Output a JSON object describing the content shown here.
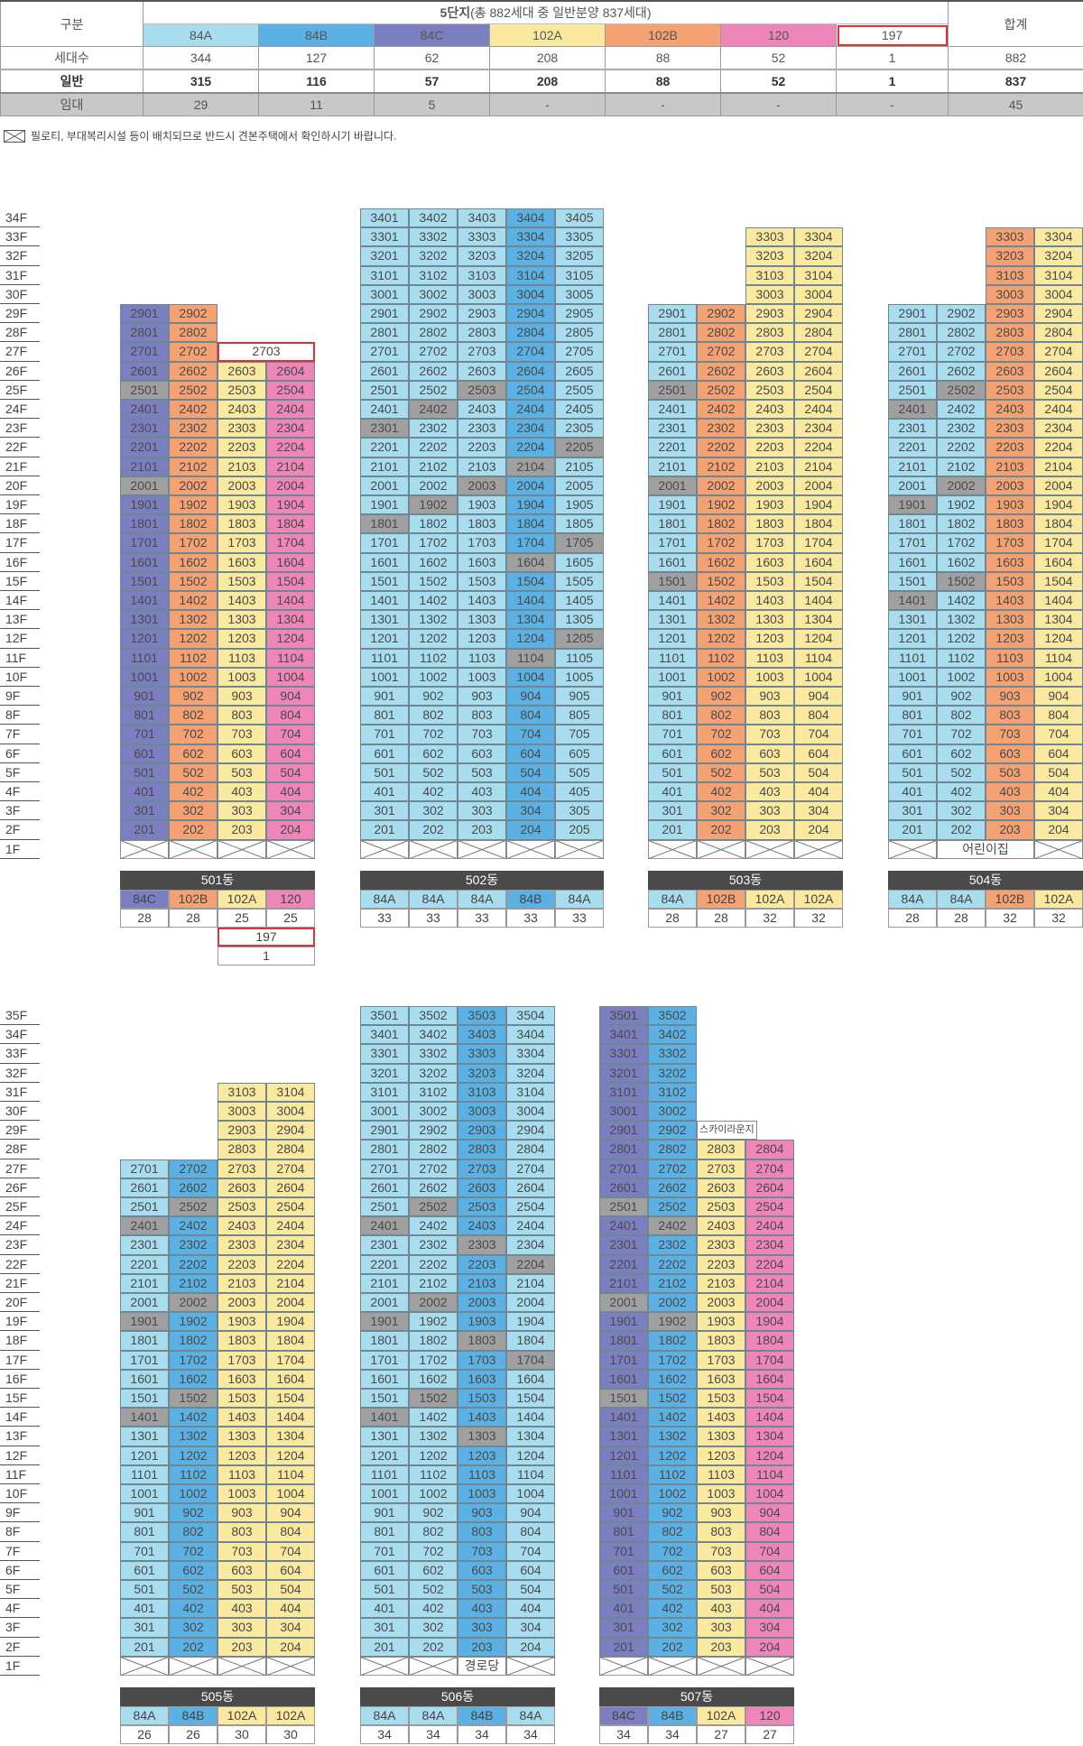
{
  "summary": {
    "header_label": "구분",
    "complex_title": "5단지",
    "complex_subtitle": "(총 882세대 중 일반분양 837세대)",
    "total_label": "합계",
    "types": [
      {
        "name": "84A",
        "color": "#a8dcef"
      },
      {
        "name": "84B",
        "color": "#5bb1e3"
      },
      {
        "name": "84C",
        "color": "#7b7fc0"
      },
      {
        "name": "102A",
        "color": "#fbe9a0"
      },
      {
        "name": "102B",
        "color": "#f4a274"
      },
      {
        "name": "120",
        "color": "#ef86b9"
      },
      {
        "name": "197",
        "color": "#ffffff"
      }
    ],
    "rows": [
      {
        "label": "세대수",
        "values": [
          "344",
          "127",
          "62",
          "208",
          "88",
          "52",
          "1"
        ],
        "total": "882"
      },
      {
        "label": "일반",
        "values": [
          "315",
          "116",
          "57",
          "208",
          "88",
          "52",
          "1"
        ],
        "total": "837"
      },
      {
        "label": "임대",
        "values": [
          "29",
          "11",
          "5",
          "-",
          "-",
          "-",
          "-"
        ],
        "total": "45"
      }
    ]
  },
  "note": {
    "icon": "pilotis-x-box-icon",
    "text": "필로티, 부대복리시설 등이 배치되므로 반드시 견본주택에서 확인하시기 바랍니다."
  },
  "colors": {
    "rental": "#a0a0a0",
    "special_border": "#d9343a",
    "label_header": "#4a4a4a"
  },
  "sections": {
    "top": {
      "floors": [
        "34F",
        "33F",
        "32F",
        "31F",
        "30F",
        "29F",
        "28F",
        "27F",
        "26F",
        "25F",
        "24F",
        "23F",
        "22F",
        "21F",
        "20F",
        "19F",
        "18F",
        "17F",
        "16F",
        "15F",
        "14F",
        "13F",
        "12F",
        "11F",
        "10F",
        "9F",
        "8F",
        "7F",
        "6F",
        "5F",
        "4F",
        "3F",
        "2F",
        "1F"
      ]
    },
    "bottom": {
      "floors": [
        "35F",
        "34F",
        "33F",
        "32F",
        "31F",
        "30F",
        "29F",
        "28F",
        "27F",
        "26F",
        "25F",
        "24F",
        "23F",
        "22F",
        "21F",
        "20F",
        "19F",
        "18F",
        "17F",
        "16F",
        "15F",
        "14F",
        "13F",
        "12F",
        "11F",
        "10F",
        "9F",
        "8F",
        "7F",
        "6F",
        "5F",
        "4F",
        "3F",
        "2F",
        "1F"
      ]
    }
  },
  "buildings": [
    {
      "id": "501",
      "label": "501동",
      "section": "top",
      "columns": [
        {
          "type": "84C",
          "count": "28",
          "top_floor": 29
        },
        {
          "type": "102B",
          "count": "28",
          "top_floor": 29
        },
        {
          "type": "102A",
          "count": "25",
          "top_floor": 26
        },
        {
          "type": "120",
          "count": "25",
          "top_floor": 26
        }
      ],
      "rental": [
        "2501",
        "2001"
      ],
      "specials": [
        {
          "kind": "special",
          "floor": 27,
          "col": 2,
          "span": 2,
          "text": "2703"
        }
      ],
      "first_floor": [
        {
          "pilotis": true
        },
        {
          "pilotis": true
        },
        {
          "pilotis": true
        },
        {
          "pilotis": true
        }
      ],
      "extra_label": {
        "type": "197",
        "count": "1",
        "col": 2,
        "span": 2
      }
    },
    {
      "id": "502",
      "label": "502동",
      "section": "top",
      "columns": [
        {
          "type": "84A",
          "count": "33",
          "top_floor": 34
        },
        {
          "type": "84A",
          "count": "33",
          "top_floor": 34
        },
        {
          "type": "84A",
          "count": "33",
          "top_floor": 34
        },
        {
          "type": "84B",
          "count": "33",
          "top_floor": 34
        },
        {
          "type": "84A",
          "count": "33",
          "top_floor": 34
        }
      ],
      "rental": [
        "2503",
        "2402",
        "2301",
        "2205",
        "2104",
        "2003",
        "1902",
        "1801",
        "1705",
        "1604",
        "1205",
        "1104"
      ],
      "specials": [],
      "first_floor": [
        {
          "pilotis": true
        },
        {
          "pilotis": true
        },
        {
          "pilotis": true
        },
        {
          "pilotis": true
        },
        {
          "pilotis": true
        }
      ]
    },
    {
      "id": "503",
      "label": "503동",
      "section": "top",
      "columns": [
        {
          "type": "84A",
          "count": "28",
          "top_floor": 29
        },
        {
          "type": "102B",
          "count": "28",
          "top_floor": 29
        },
        {
          "type": "102A",
          "count": "32",
          "top_floor": 33
        },
        {
          "type": "102A",
          "count": "32",
          "top_floor": 33
        }
      ],
      "rental": [
        "2501",
        "2001",
        "1501"
      ],
      "specials": [],
      "first_floor": [
        {
          "pilotis": true
        },
        {
          "pilotis": true
        },
        {
          "pilotis": true
        },
        {
          "pilotis": true
        }
      ]
    },
    {
      "id": "504",
      "label": "504동",
      "section": "top",
      "columns": [
        {
          "type": "84A",
          "count": "28",
          "top_floor": 29
        },
        {
          "type": "84A",
          "count": "28",
          "top_floor": 29
        },
        {
          "type": "102B",
          "count": "32",
          "top_floor": 33
        },
        {
          "type": "102A",
          "count": "32",
          "top_floor": 33
        }
      ],
      "rental": [
        "2502",
        "2401",
        "2002",
        "1901",
        "1502",
        "1401"
      ],
      "specials": [],
      "first_floor": [
        {
          "pilotis": true
        },
        {
          "text": "어린이집",
          "span": 2
        },
        {
          "pilotis": true
        }
      ]
    },
    {
      "id": "505",
      "label": "505동",
      "section": "bottom",
      "columns": [
        {
          "type": "84A",
          "count": "26",
          "top_floor": 27
        },
        {
          "type": "84B",
          "count": "26",
          "top_floor": 27
        },
        {
          "type": "102A",
          "count": "30",
          "top_floor": 31
        },
        {
          "type": "102A",
          "count": "30",
          "top_floor": 31
        }
      ],
      "rental": [
        "2502",
        "2401",
        "2002",
        "1901",
        "1502",
        "1401"
      ],
      "specials": [],
      "first_floor": [
        {
          "pilotis": true
        },
        {
          "pilotis": true
        },
        {
          "pilotis": true
        },
        {
          "pilotis": true
        }
      ]
    },
    {
      "id": "506",
      "label": "506동",
      "section": "bottom",
      "columns": [
        {
          "type": "84A",
          "count": "34",
          "top_floor": 35
        },
        {
          "type": "84A",
          "count": "34",
          "top_floor": 35
        },
        {
          "type": "84B",
          "count": "34",
          "top_floor": 35
        },
        {
          "type": "84A",
          "count": "34",
          "top_floor": 35
        }
      ],
      "rental": [
        "2502",
        "2401",
        "2303",
        "2204",
        "2002",
        "1901",
        "1803",
        "1704",
        "1502",
        "1401",
        "1303"
      ],
      "specials": [],
      "first_floor": [
        {
          "pilotis": true
        },
        {
          "pilotis": true
        },
        {
          "text": "경로당",
          "span": 1
        },
        {
          "pilotis": true
        }
      ]
    },
    {
      "id": "507",
      "label": "507동",
      "section": "bottom",
      "columns": [
        {
          "type": "84C",
          "count": "34",
          "top_floor": 35
        },
        {
          "type": "84B",
          "count": "34",
          "top_floor": 35
        },
        {
          "type": "102A",
          "count": "27",
          "top_floor": 28
        },
        {
          "type": "120",
          "count": "27",
          "top_floor": 28
        }
      ],
      "rental": [
        "2501",
        "2402",
        "2001",
        "1902",
        "1501"
      ],
      "specials": [
        {
          "kind": "lounge",
          "floor": 29,
          "col": 2,
          "span": 1,
          "text": "스카이라운지"
        }
      ],
      "first_floor": [
        {
          "pilotis": true
        },
        {
          "pilotis": true
        },
        {
          "pilotis": true
        },
        {
          "pilotis": true
        }
      ]
    }
  ]
}
